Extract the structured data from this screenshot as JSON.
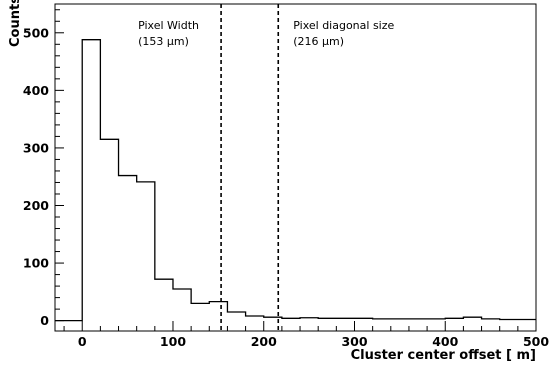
{
  "chart_data": {
    "type": "histogram",
    "xlabel": "Cluster center offset [   m]",
    "ylabel": "Counts",
    "xlim": [
      -30,
      500
    ],
    "ylim": [
      -18,
      550
    ],
    "x_ticks": [
      0,
      100,
      200,
      300,
      400,
      500
    ],
    "y_ticks": [
      0,
      100,
      200,
      300,
      400,
      500
    ],
    "grid": false,
    "bin_width": 20,
    "bin_edges": [
      -10,
      0,
      20,
      40,
      60,
      80,
      100,
      120,
      140,
      160,
      180,
      200,
      220,
      240,
      260,
      280,
      300,
      320,
      340,
      360,
      380,
      400,
      420,
      440,
      460,
      480,
      500
    ],
    "values": [
      0,
      488,
      315,
      252,
      241,
      72,
      55,
      30,
      33,
      15,
      8,
      6,
      4,
      5,
      4,
      4,
      4,
      3,
      3,
      3,
      3,
      4,
      6,
      3,
      2,
      2
    ],
    "vlines": [
      {
        "x": 153,
        "style": "dashed",
        "label_line1": "Pixel Width",
        "label_line2": "(153 µm)"
      },
      {
        "x": 216,
        "style": "dashed",
        "label_line1": "Pixel diagonal size",
        "label_line2": "(216 µm)"
      }
    ]
  }
}
